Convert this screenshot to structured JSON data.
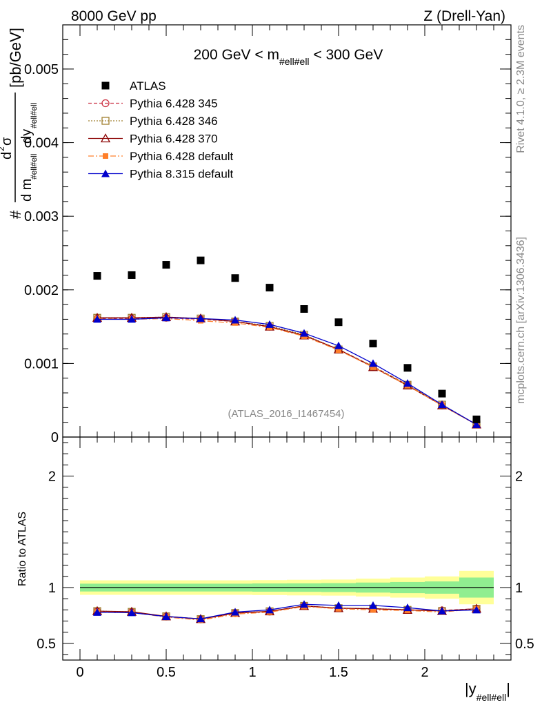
{
  "header": {
    "left": "8000 GeV pp",
    "right": "Z (Drell-Yan)"
  },
  "side_text": {
    "rivet": "Rivet 4.1.0, ≥ 2.3M events",
    "mcplots": "mcplots.cern.ch [arXiv:1306.3436]"
  },
  "watermark": "(ATLAS_2016_I1467454)",
  "colors": {
    "atlas": "#000000",
    "p345": "#cc3344",
    "p346": "#a08030",
    "p370": "#8b0000",
    "pdef": "#ff7f2a",
    "p8": "#0000cc",
    "band_outer": "#ffff99",
    "band_inner": "#90ee90"
  },
  "chart_data": [
    {
      "type": "scatter",
      "panel": "main",
      "title_parts": [
        "200 GeV < m",
        "#ell#ell",
        " < 300 GeV"
      ],
      "ylabel_parts": {
        "hash": "#",
        "d": "d",
        "sup2": "2",
        "sigma": "σ",
        "denom_d": "d m",
        "denom_sub": "#ell#ell",
        "dy": "dy",
        "dy_sub": "#ell#ell",
        "unit": "[pb/GeV]"
      },
      "xlim": [
        -0.1,
        2.5
      ],
      "ylim": [
        0,
        0.0056
      ],
      "yticks": [
        0,
        0.001,
        0.002,
        0.003,
        0.004,
        0.005
      ],
      "ytick_labels": [
        "0",
        "0.001",
        "0.002",
        "0.003",
        "0.004",
        "0.005"
      ],
      "x": [
        0.1,
        0.3,
        0.5,
        0.7,
        0.9,
        1.1,
        1.3,
        1.5,
        1.7,
        1.9,
        2.1,
        2.3
      ],
      "legend_labels": [
        "ATLAS",
        "Pythia 6.428 345",
        "Pythia 6.428 346",
        "Pythia 6.428 370",
        "Pythia 6.428 default",
        "Pythia 8.315 default"
      ],
      "series": [
        {
          "name": "ATLAS",
          "values": [
            0.00219,
            0.0022,
            0.00234,
            0.0024,
            0.00216,
            0.00203,
            0.00174,
            0.00156,
            0.00127,
            0.00094,
            0.00059,
            0.00024
          ]
        },
        {
          "name": "Pythia 6.428 345",
          "values": [
            0.00161,
            0.00161,
            0.00162,
            0.0016,
            0.00157,
            0.0015,
            0.00138,
            0.00119,
            0.00096,
            0.00071,
            0.00043,
            0.00017
          ]
        },
        {
          "name": "Pythia 6.428 346",
          "values": [
            0.00162,
            0.00162,
            0.00163,
            0.00161,
            0.00157,
            0.00151,
            0.00139,
            0.00119,
            0.00096,
            0.00071,
            0.00044,
            0.00017
          ]
        },
        {
          "name": "Pythia 6.428 370",
          "values": [
            0.00162,
            0.00162,
            0.00163,
            0.00161,
            0.00157,
            0.0015,
            0.00138,
            0.00119,
            0.00095,
            0.0007,
            0.00043,
            0.00017
          ]
        },
        {
          "name": "Pythia 6.428 default",
          "values": [
            0.00161,
            0.0016,
            0.00161,
            0.00158,
            0.00155,
            0.00149,
            0.00137,
            0.00118,
            0.00095,
            0.0007,
            0.00043,
            0.00017
          ]
        },
        {
          "name": "Pythia 8.315 default",
          "values": [
            0.0016,
            0.0016,
            0.00162,
            0.00161,
            0.00159,
            0.00153,
            0.00141,
            0.00124,
            0.001,
            0.00073,
            0.00044,
            0.00017
          ]
        }
      ]
    },
    {
      "type": "scatter",
      "panel": "ratio",
      "ylabel": "Ratio to ATLAS",
      "xlabel_main": "|y",
      "xlabel_sub": "#ell#ell",
      "xlabel_end": "|",
      "xlim": [
        -0.1,
        2.5
      ],
      "ylim": [
        0.35,
        2.35
      ],
      "xticks": [
        0,
        0.5,
        1,
        1.5,
        2
      ],
      "xtick_labels": [
        "0",
        "0.5",
        "1",
        "1.5",
        "2"
      ],
      "yticks": [
        0.5,
        1,
        2
      ],
      "ytick_labels": [
        "0.5",
        "1",
        "2"
      ],
      "x": [
        0.1,
        0.3,
        0.5,
        0.7,
        0.9,
        1.1,
        1.3,
        1.5,
        1.7,
        1.9,
        2.1,
        2.3
      ],
      "band_edges": [
        0.0,
        0.2,
        0.4,
        0.6,
        0.8,
        1.0,
        1.2,
        1.4,
        1.6,
        1.8,
        2.0,
        2.2,
        2.4
      ],
      "band_outer": [
        [
          0.935,
          1.065
        ],
        [
          0.935,
          1.065
        ],
        [
          0.935,
          1.065
        ],
        [
          0.935,
          1.065
        ],
        [
          0.935,
          1.065
        ],
        [
          0.933,
          1.067
        ],
        [
          0.93,
          1.07
        ],
        [
          0.928,
          1.072
        ],
        [
          0.92,
          1.08
        ],
        [
          0.91,
          1.09
        ],
        [
          0.9,
          1.1
        ],
        [
          0.85,
          1.15
        ]
      ],
      "band_inner": [
        [
          0.965,
          1.035
        ],
        [
          0.965,
          1.035
        ],
        [
          0.965,
          1.035
        ],
        [
          0.965,
          1.035
        ],
        [
          0.965,
          1.035
        ],
        [
          0.963,
          1.037
        ],
        [
          0.962,
          1.038
        ],
        [
          0.96,
          1.04
        ],
        [
          0.955,
          1.045
        ],
        [
          0.95,
          1.05
        ],
        [
          0.945,
          1.055
        ],
        [
          0.91,
          1.09
        ]
      ],
      "series": [
        {
          "name": "Pythia 6.428 345",
          "values": [
            0.787,
            0.78,
            0.74,
            0.715,
            0.77,
            0.785,
            0.835,
            0.815,
            0.81,
            0.8,
            0.795,
            0.81
          ]
        },
        {
          "name": "Pythia 6.428 346",
          "values": [
            0.789,
            0.782,
            0.742,
            0.717,
            0.772,
            0.787,
            0.836,
            0.815,
            0.812,
            0.8,
            0.79,
            0.81
          ]
        },
        {
          "name": "Pythia 6.428 370",
          "values": [
            0.789,
            0.783,
            0.742,
            0.718,
            0.772,
            0.787,
            0.835,
            0.815,
            0.81,
            0.8,
            0.79,
            0.81
          ]
        },
        {
          "name": "Pythia 6.428 default",
          "values": [
            0.782,
            0.776,
            0.736,
            0.708,
            0.762,
            0.78,
            0.83,
            0.81,
            0.8,
            0.795,
            0.78,
            0.81
          ]
        },
        {
          "name": "Pythia 8.315 default",
          "values": [
            0.778,
            0.775,
            0.74,
            0.72,
            0.78,
            0.8,
            0.85,
            0.84,
            0.84,
            0.82,
            0.79,
            0.8
          ]
        }
      ]
    }
  ]
}
